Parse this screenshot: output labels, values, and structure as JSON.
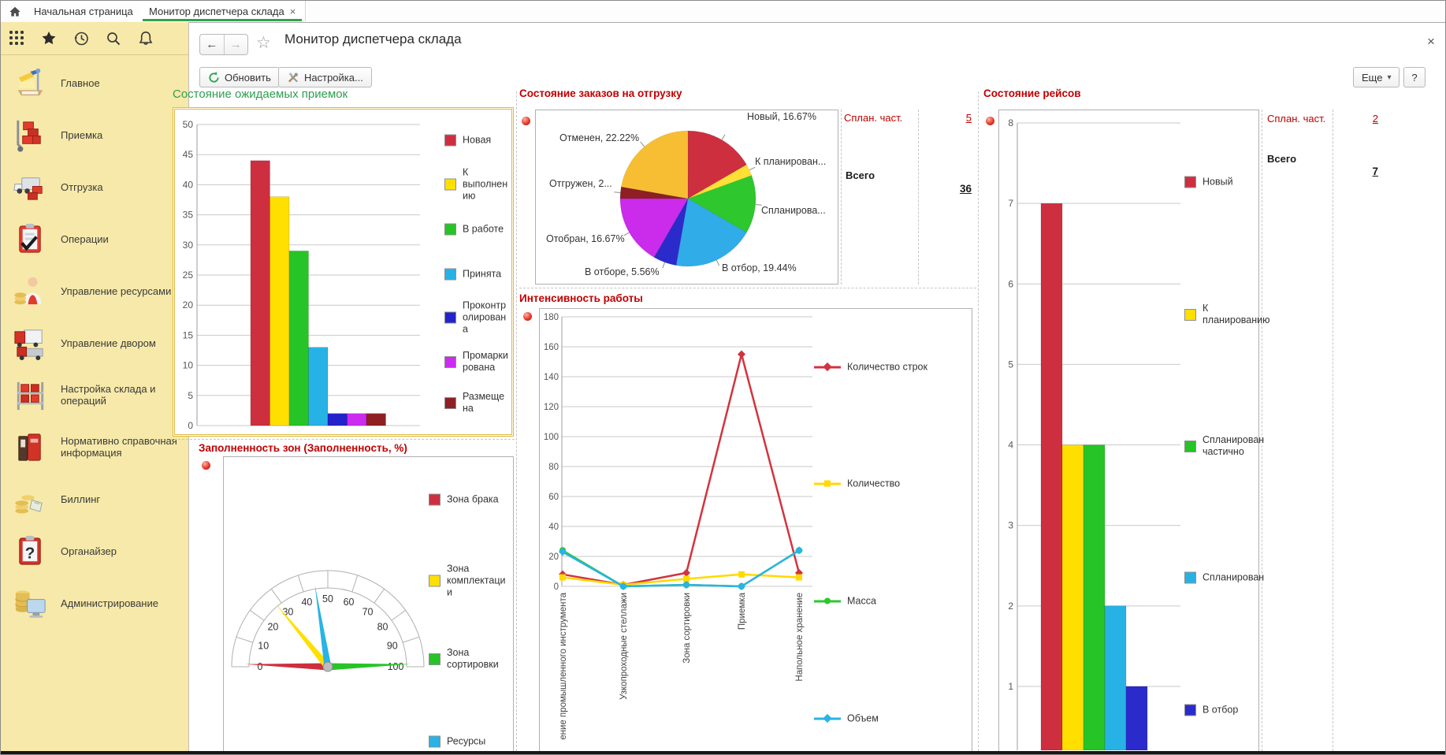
{
  "tabbar": {
    "tabs": [
      {
        "label": "Начальная страница",
        "active": false
      },
      {
        "label": "Монитор диспетчера склада",
        "active": true
      }
    ]
  },
  "sidebar": {
    "items": [
      {
        "label": "Главное",
        "icon": "desk-icon"
      },
      {
        "label": "Приемка",
        "icon": "receiving-icon"
      },
      {
        "label": "Отгрузка",
        "icon": "shipping-icon"
      },
      {
        "label": "Операции",
        "icon": "operations-icon"
      },
      {
        "label": "Управление ресурсами",
        "icon": "resources-icon"
      },
      {
        "label": "Управление двором",
        "icon": "yard-icon"
      },
      {
        "label": "Настройка склада и операций",
        "icon": "warehouse-setup-icon"
      },
      {
        "label": "Нормативно справочная информация",
        "icon": "reference-icon"
      },
      {
        "label": "Биллинг",
        "icon": "billing-icon"
      },
      {
        "label": "Органайзер",
        "icon": "organizer-icon"
      },
      {
        "label": "Администрирование",
        "icon": "administration-icon"
      }
    ]
  },
  "header": {
    "title": "Монитор диспетчера склада"
  },
  "toolbar": {
    "refresh_label": "Обновить",
    "settings_label": "Настройка...",
    "more_label": "Еще",
    "help_label": "?"
  },
  "summaries": {
    "shipping": {
      "planned_label": "Сплан. част.",
      "planned_value": "5",
      "total_label": "Всего",
      "total_value": "36"
    },
    "trips": {
      "planned_label": "Сплан. част.",
      "planned_value": "2",
      "total_label": "Всего",
      "total_value": "7"
    }
  },
  "chart_data": [
    {
      "id": "receipts",
      "type": "bar",
      "title": "Состояние ожидаемых приемок",
      "title_color": "#2f9e50",
      "ylim": [
        0,
        50
      ],
      "ytick": 5,
      "grid": true,
      "legend_position": "right",
      "categories": [
        "Новая",
        "К выполнению",
        "В работе",
        "Принята",
        "Проконтролирована",
        "Промаркирована",
        "Размещена"
      ],
      "values": [
        44,
        38,
        29,
        13,
        2,
        2,
        2
      ],
      "colors": [
        "#ce2f3f",
        "#ffdf00",
        "#26c426",
        "#27b2e6",
        "#2323cc",
        "#cc2bf0",
        "#8e2023"
      ]
    },
    {
      "id": "zone-fill",
      "type": "gauge",
      "title": "Заполненность зон (Заполненность, %)",
      "scale": [
        0,
        100
      ],
      "tick": 10,
      "series": [
        {
          "name": "Зона брака",
          "value": 1,
          "color": "#ce2f3f"
        },
        {
          "name": "Зона комплектации",
          "value": 28,
          "color": "#ffdf00"
        },
        {
          "name": "Зона сортировки",
          "value": 99,
          "color": "#26c426"
        },
        {
          "name": "Ресурсы",
          "value": 45,
          "color": "#29b3e6"
        }
      ]
    },
    {
      "id": "shipping-orders",
      "type": "pie",
      "title": "Состояние заказов на отгрузку",
      "slices": [
        {
          "name": "Новый",
          "pct": 16.67,
          "label": "Новый, 16.67%",
          "color": "#ce2f3f"
        },
        {
          "name": "К планированию",
          "pct": 2.78,
          "label": "К планирован...",
          "color": "#ffe135"
        },
        {
          "name": "Спланирован",
          "pct": 13.89,
          "label": "Спланирова...",
          "color": "#2ec72e"
        },
        {
          "name": "В отбор",
          "pct": 19.44,
          "label": "В отбор, 19.44%",
          "color": "#30ace8"
        },
        {
          "name": "В отборе",
          "pct": 5.56,
          "label": "В отборе, 5.56%",
          "color": "#2b2bcb"
        },
        {
          "name": "Отобран",
          "pct": 16.67,
          "label": "Отобран, 16.67%",
          "color": "#cb2beb"
        },
        {
          "name": "Отгружен",
          "pct": 2.78,
          "label": "Отгружен, 2...",
          "color": "#8e1f24"
        },
        {
          "name": "Отменен",
          "pct": 22.22,
          "label": "Отменен, 22.22%",
          "color": "#f7be33"
        }
      ]
    },
    {
      "id": "intensity",
      "type": "line",
      "title": "Интенсивность работы",
      "ylim": [
        0,
        180
      ],
      "ytick": 20,
      "grid": true,
      "legend_position": "right",
      "categories": [
        "ение промышленного инструмента",
        "Узкопроходные стеллажи",
        "Зона сортировки",
        "Приемка",
        "Напольное хранение"
      ],
      "series": [
        {
          "name": "Количество строк",
          "marker": "diamond",
          "color": "#d2333f",
          "values": [
            8,
            1,
            9,
            155,
            9
          ]
        },
        {
          "name": "Количество",
          "marker": "square",
          "color": "#ffd900",
          "values": [
            6,
            1,
            5,
            8,
            6
          ]
        },
        {
          "name": "Масса",
          "marker": "circle",
          "color": "#2ec72e",
          "values": [
            24,
            0,
            1,
            0,
            24
          ]
        },
        {
          "name": "Объем",
          "marker": "diamond",
          "color": "#29b3e6",
          "values": [
            23,
            0,
            1,
            0,
            24
          ]
        }
      ]
    },
    {
      "id": "trips",
      "type": "bar",
      "title": "Состояние рейсов",
      "ylim": [
        0,
        8
      ],
      "ytick": 1,
      "grid": true,
      "legend_position": "right",
      "categories": [
        "Новый",
        "К планированию",
        "Спланирован частично",
        "Спланирован",
        "В отбор"
      ],
      "values": [
        7,
        4,
        4,
        2,
        1
      ],
      "colors": [
        "#ce2f3f",
        "#ffdf00",
        "#26c426",
        "#27b2e6",
        "#2b2bcb"
      ]
    }
  ]
}
